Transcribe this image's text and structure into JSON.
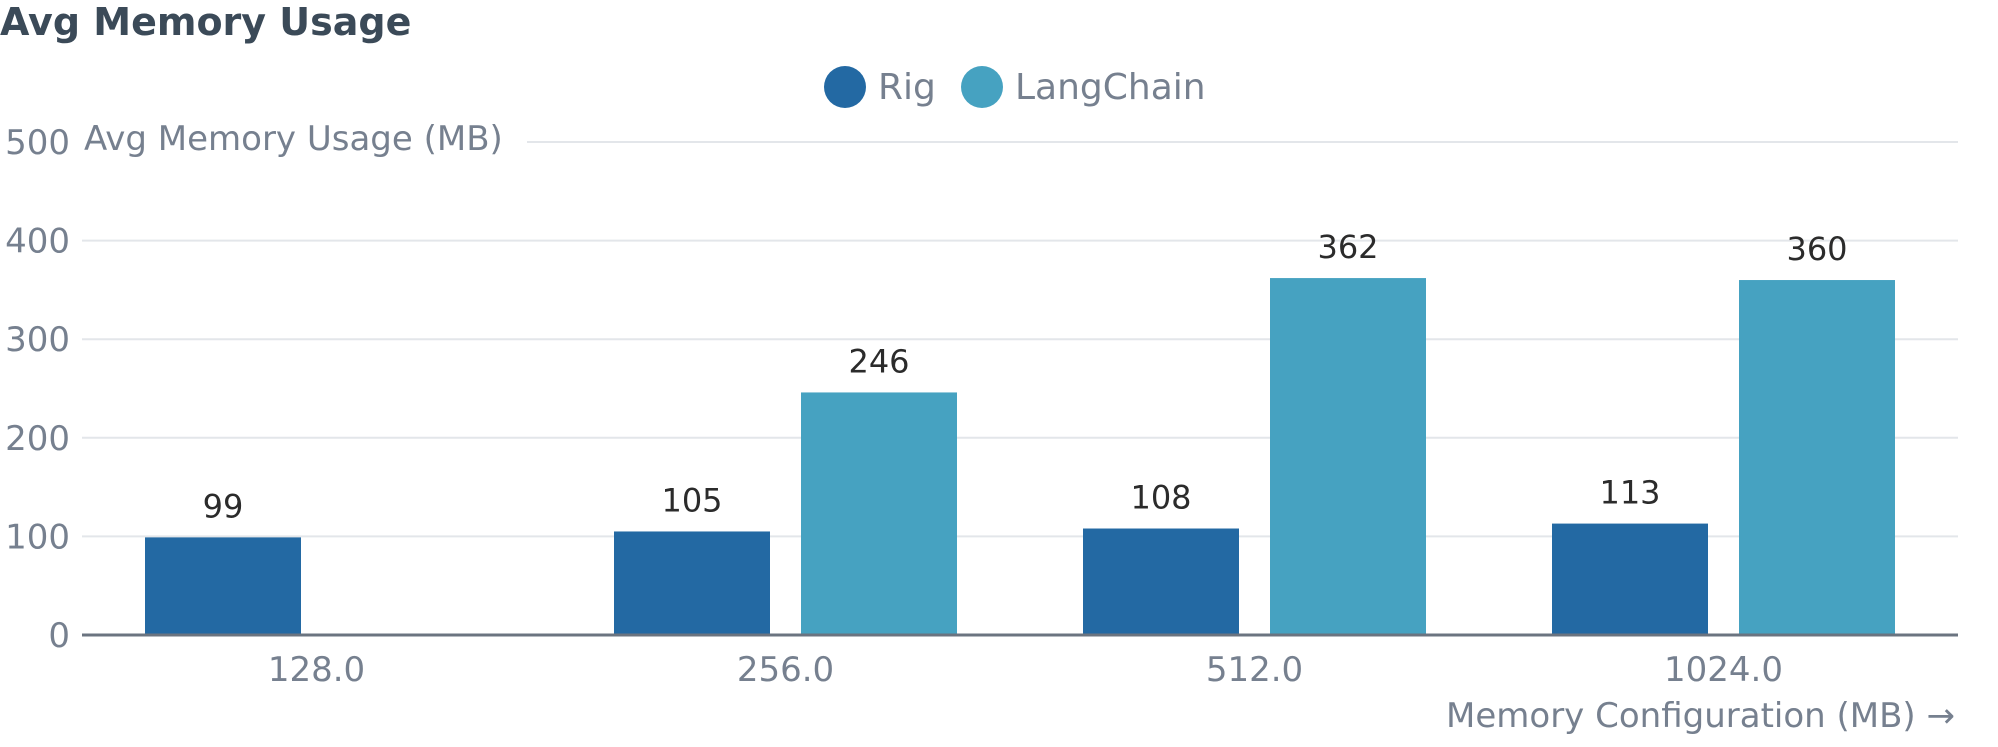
{
  "chart_data": {
    "type": "bar",
    "title": "Avg Memory Usage",
    "ylabel": "Avg Memory Usage (MB)",
    "xlabel": "Memory Configuration (MB) →",
    "categories": [
      "128.0",
      "256.0",
      "512.0",
      "1024.0"
    ],
    "series": [
      {
        "name": "Rig",
        "color": "#2369a3",
        "values": [
          99,
          105,
          108,
          113
        ]
      },
      {
        "name": "LangChain",
        "color": "#46a2c1",
        "values": [
          null,
          246,
          362,
          360
        ]
      }
    ],
    "ylim": [
      0,
      500
    ],
    "yticks": [
      0,
      100,
      200,
      300,
      400,
      500
    ],
    "grid": true,
    "legend_position": "top-center"
  }
}
